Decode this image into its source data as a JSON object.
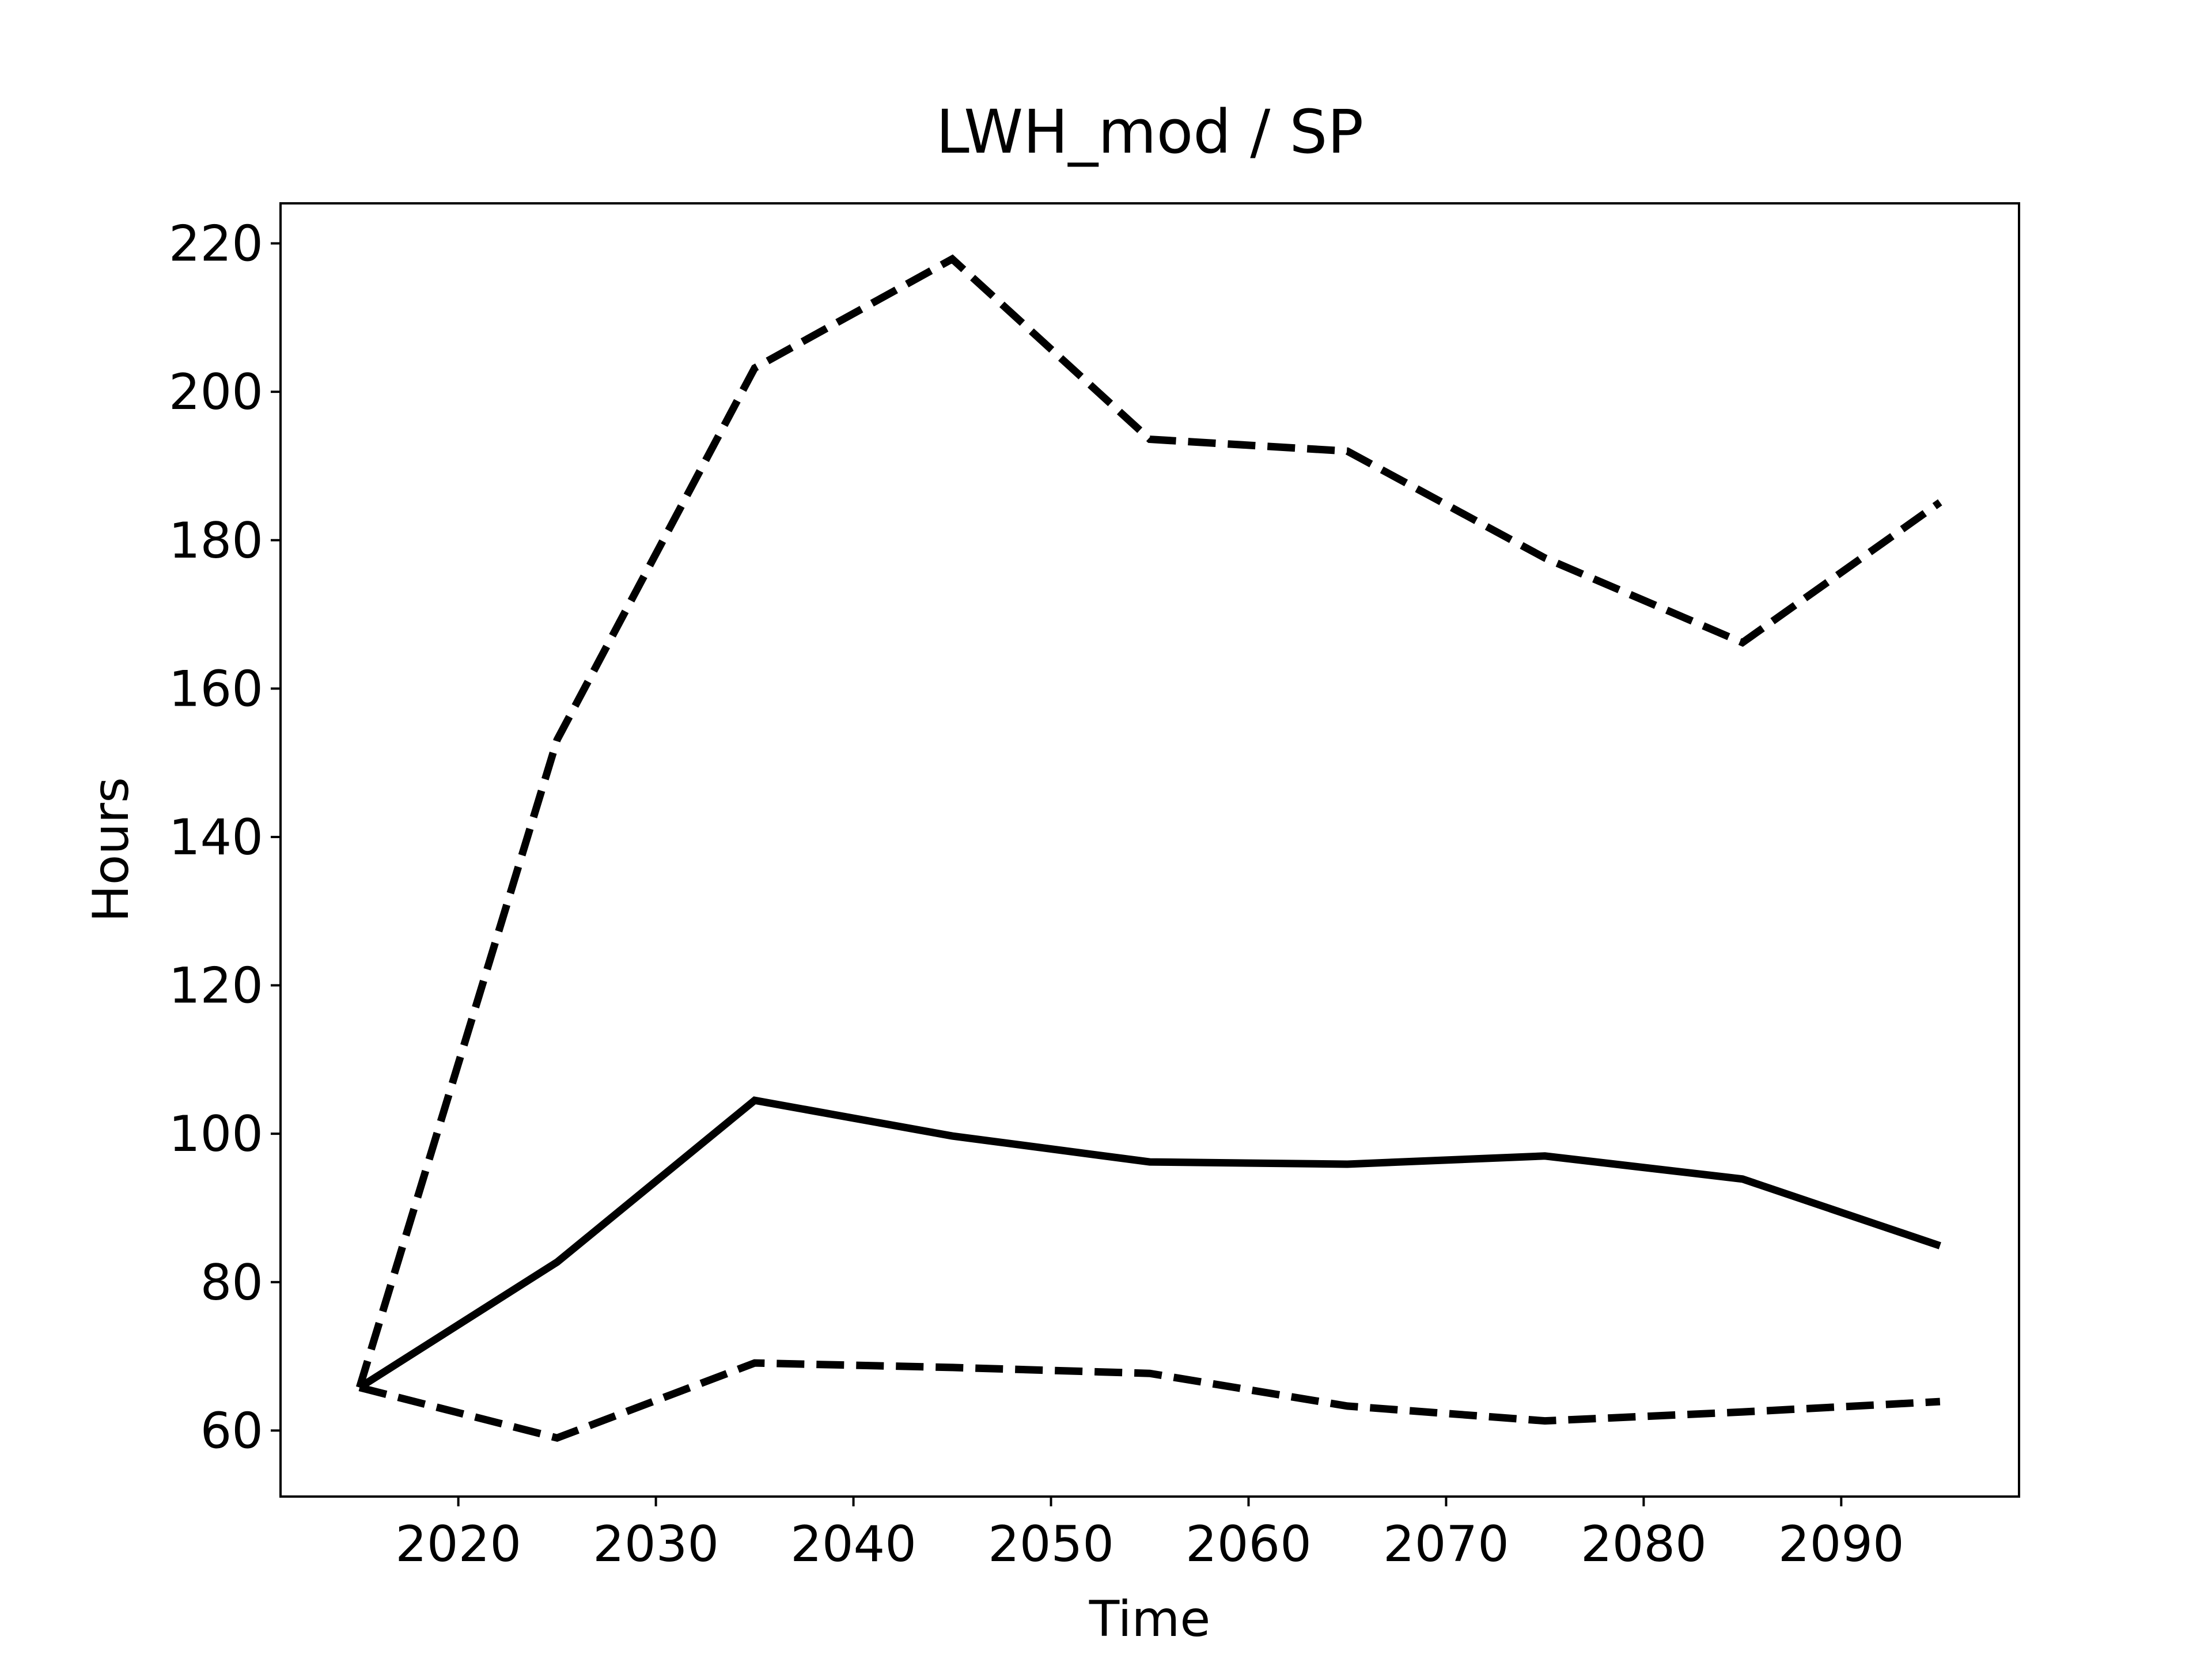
{
  "chart_data": {
    "type": "line",
    "title": "LWH_mod / SP",
    "x_label": "Time",
    "y_label": "Hours",
    "x": [
      2015,
      2025,
      2035,
      2045,
      2055,
      2065,
      2075,
      2085,
      2095
    ],
    "series": [
      {
        "color": "#000000",
        "dashed": false,
        "values": [
          65.8,
          82.7,
          104.5,
          99.7,
          96.2,
          95.9,
          97.0,
          93.9,
          84.9
        ]
      },
      {
        "color": "#000000",
        "dashed": true,
        "values": [
          65.8,
          153.1,
          203.2,
          217.9,
          193.6,
          192.0,
          177.6,
          166.2,
          185.1
        ]
      },
      {
        "color": "#000000",
        "dashed": true,
        "values": [
          65.8,
          59.0,
          69.1,
          68.5,
          67.7,
          63.3,
          61.3,
          62.5,
          63.9
        ]
      }
    ],
    "xlim": [
      2011,
      2099
    ],
    "xticks": [
      2020,
      2030,
      2040,
      2050,
      2060,
      2070,
      2080,
      2090
    ],
    "ylim": [
      51.1,
      225.4
    ],
    "yticks": [
      60,
      80,
      100,
      120,
      140,
      160,
      180,
      200,
      220
    ],
    "grid": false
  }
}
